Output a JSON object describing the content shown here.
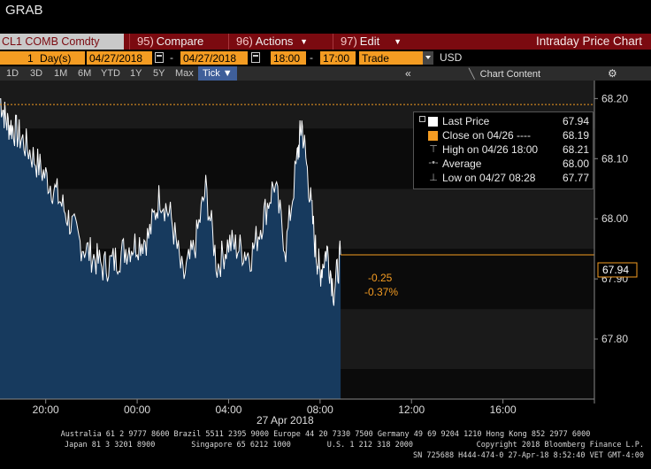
{
  "header": {
    "title": "GRAB"
  },
  "toolbar": {
    "ticker": "CL1 COMB Comdty",
    "compare": {
      "num": "95)",
      "label": "Compare"
    },
    "actions": {
      "num": "96)",
      "label": "Actions"
    },
    "edit": {
      "num": "97)",
      "label": "Edit"
    },
    "chart_title": "Intraday Price Chart"
  },
  "params": {
    "period": "1",
    "period_unit": "Day(s)",
    "start_date": "04/27/2018",
    "date_sep": "-",
    "end_date": "04/27/2018",
    "start_time": "18:00",
    "time_sep": "-",
    "end_time": "17:00",
    "field": "Trade",
    "currency": "USD"
  },
  "ranges": [
    "1D",
    "3D",
    "1M",
    "6M",
    "YTD",
    "1Y",
    "5Y",
    "Max"
  ],
  "tick_selector": "Tick ▼",
  "chart_content_label": "Chart Content",
  "legend": {
    "last_price": {
      "label": "Last Price",
      "value": "67.94"
    },
    "close": {
      "label": "Close on 04/26 ----",
      "value": "68.19"
    },
    "high": {
      "label": "High on 04/26 18:00",
      "value": "68.21"
    },
    "average": {
      "label": "Average",
      "value": "68.00"
    },
    "low": {
      "label": "Low on 04/27 08:28",
      "value": "67.77"
    }
  },
  "annotations": {
    "change": "-0.25",
    "change_pct": "-0.37%",
    "last_tag": "67.94"
  },
  "colors": {
    "accent_orange": "#f49c22",
    "menu_red": "#7b0a10",
    "price_line": "#ffffff",
    "area_fill": "#173a5e"
  },
  "chart_data": {
    "type": "area",
    "ylim": [
      67.7,
      68.23
    ],
    "yticks": [
      67.8,
      67.9,
      68.0,
      68.1,
      68.2
    ],
    "ytick_labels": [
      "67.80",
      "67.90",
      "68.00",
      "68.10",
      "68.20"
    ],
    "xticks": [
      2,
      6,
      10,
      14,
      18,
      22,
      26
    ],
    "xtick_labels": [
      "20:00",
      "00:00",
      "04:00",
      "08:00",
      "12:00",
      "16:00",
      ""
    ],
    "date_label": "27 Apr 2018",
    "close_reference": 68.19,
    "last_price": 67.94,
    "x_hours": [
      0,
      0.3,
      0.6,
      1.0,
      1.5,
      2.0,
      2.5,
      3.0,
      3.5,
      4.0,
      4.5,
      5.0,
      5.5,
      6.0,
      6.5,
      7.0,
      7.5,
      8.0,
      8.5,
      9.0,
      9.5,
      10.0,
      10.5,
      11.0,
      11.5,
      12.0,
      12.5,
      13.0,
      13.2,
      13.5,
      13.8,
      14.0,
      14.3,
      14.6,
      14.9
    ],
    "values": [
      68.2,
      68.16,
      68.15,
      68.13,
      68.1,
      68.07,
      68.04,
      68.0,
      67.96,
      67.94,
      67.92,
      67.93,
      67.95,
      67.96,
      67.97,
      68.04,
      68.0,
      67.9,
      67.95,
      68.05,
      67.92,
      67.96,
      67.95,
      67.94,
      68.0,
      68.06,
      67.95,
      68.1,
      68.16,
      68.06,
      67.95,
      67.91,
      67.95,
      67.88,
      67.94
    ]
  },
  "footer": {
    "line1": "Australia 61 2 9777 8600 Brazil 5511 2395 9000 Europe 44 20 7330 7500 Germany 49 69 9204 1210 Hong Kong 852 2977 6000",
    "line2": "Japan 81 3 3201 8900        Singapore 65 6212 1000        U.S. 1 212 318 2000              Copyright 2018 Bloomberg Finance L.P.",
    "line3": "SN 725688 H444-474-0 27-Apr-18  8:52:40 VET  GMT-4:00"
  }
}
